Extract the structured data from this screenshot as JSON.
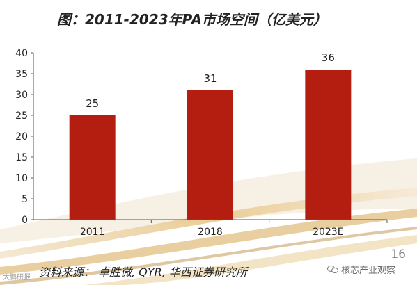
{
  "title": "图：2011-2023年PA市场空间（亿美元）",
  "source": "资料来源：  卓胜微, QYR, 华西证券研究所",
  "page_number": "16",
  "watermark_left": "大鹏研报",
  "watermark_right": "核芯产业观察",
  "colors": {
    "bar": "#b31e10",
    "axis": "#555555"
  },
  "chart_data": {
    "type": "bar",
    "categories": [
      "2011",
      "2018",
      "2023E"
    ],
    "values": [
      25,
      31,
      36
    ],
    "data_labels": [
      "25",
      "31",
      "36"
    ],
    "ylim": [
      0,
      40
    ],
    "yticks": [
      "0",
      "5",
      "10",
      "15",
      "20",
      "25",
      "30",
      "35",
      "40"
    ],
    "title": "图：2011-2023年PA市场空间（亿美元）",
    "xlabel": "",
    "ylabel": "",
    "grid": false,
    "legend": "none"
  }
}
